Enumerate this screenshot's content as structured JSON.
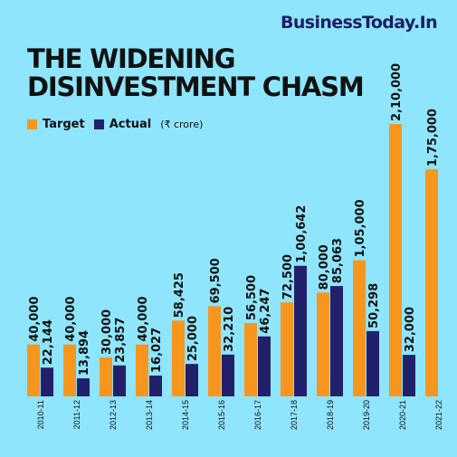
{
  "brand": "BusinessToday.In",
  "title_line1": "THE WIDENING",
  "title_line2": "DISINVESTMENT CHASM",
  "legend": {
    "target_label": "Target",
    "actual_label": "Actual",
    "unit": "(₹ crore)"
  },
  "colors": {
    "background": "#8fe5fb",
    "target": "#f7961e",
    "actual": "#23206b",
    "text": "#111111"
  },
  "chart_data": {
    "type": "bar",
    "categories": [
      "2010-11",
      "2011-12",
      "2012-13",
      "2013-14",
      "2014-15",
      "2015-16",
      "2016-17",
      "2017-18",
      "2018-19",
      "2019-20",
      "2020-21",
      "2021-22"
    ],
    "series": [
      {
        "name": "Target",
        "values": [
          40000,
          40000,
          30000,
          40000,
          58425,
          69500,
          56500,
          72500,
          80000,
          105000,
          210000,
          175000
        ],
        "labels": [
          "40,000",
          "40,000",
          "30,000",
          "40,000",
          "58,425",
          "69,500",
          "56,500",
          "72,500",
          "80,000",
          "1,05,000",
          "2,10,000",
          "1,75,000"
        ]
      },
      {
        "name": "Actual",
        "values": [
          22144,
          13894,
          23857,
          16027,
          25000,
          32210,
          46247,
          100642,
          85063,
          50298,
          32000,
          null
        ],
        "labels": [
          "22,144",
          "13,894",
          "23,857",
          "16,027",
          "25,000",
          "32,210",
          "46,247",
          "1,00,642",
          "85,063",
          "50,298",
          "32,000",
          ""
        ]
      }
    ],
    "title": "THE WIDENING DISINVESTMENT CHASM",
    "ylabel": "",
    "ylim": [
      0,
      210000
    ],
    "grid": false,
    "legend_position": "top-left"
  }
}
